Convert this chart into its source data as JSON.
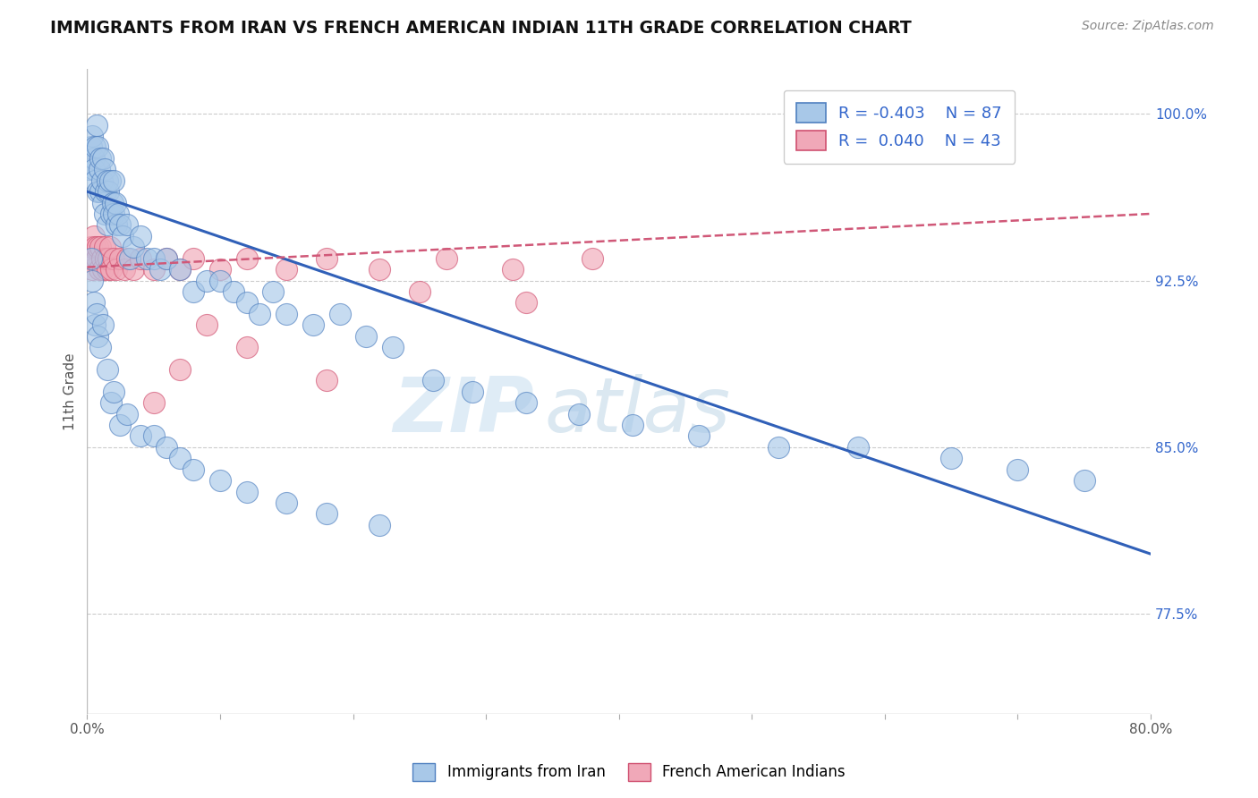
{
  "title": "IMMIGRANTS FROM IRAN VS FRENCH AMERICAN INDIAN 11TH GRADE CORRELATION CHART",
  "source_text": "Source: ZipAtlas.com",
  "ylabel": "11th Grade",
  "xlim": [
    0.0,
    80.0
  ],
  "ylim": [
    73.0,
    102.0
  ],
  "yticks": [
    77.5,
    85.0,
    92.5,
    100.0
  ],
  "ytick_labels": [
    "77.5%",
    "85.0%",
    "92.5%",
    "100.0%"
  ],
  "xticks": [
    0.0,
    10.0,
    20.0,
    30.0,
    40.0,
    50.0,
    60.0,
    70.0,
    80.0
  ],
  "blue_R": -0.403,
  "blue_N": 87,
  "pink_R": 0.04,
  "pink_N": 43,
  "blue_color": "#a8c8e8",
  "pink_color": "#f0a8b8",
  "blue_edge_color": "#5080c0",
  "pink_edge_color": "#d05070",
  "blue_line_color": "#3060b8",
  "pink_line_color": "#d05878",
  "legend_label_blue": "Immigrants from Iran",
  "legend_label_pink": "French American Indians",
  "watermark_zip": "ZIP",
  "watermark_atlas": "atlas",
  "background_color": "#ffffff",
  "grid_color": "#cccccc",
  "blue_trend_x0": 0.0,
  "blue_trend_y0": 96.5,
  "blue_trend_x1": 80.0,
  "blue_trend_y1": 80.2,
  "pink_trend_x0": 0.0,
  "pink_trend_y0": 93.1,
  "pink_trend_x1": 80.0,
  "pink_trend_y1": 95.5,
  "blue_x": [
    0.2,
    0.3,
    0.4,
    0.5,
    0.5,
    0.6,
    0.6,
    0.7,
    0.8,
    0.8,
    0.9,
    1.0,
    1.0,
    1.1,
    1.2,
    1.2,
    1.3,
    1.3,
    1.4,
    1.5,
    1.5,
    1.6,
    1.7,
    1.8,
    1.9,
    2.0,
    2.0,
    2.1,
    2.2,
    2.3,
    2.5,
    2.7,
    3.0,
    3.2,
    3.5,
    4.0,
    4.5,
    5.0,
    5.5,
    6.0,
    7.0,
    8.0,
    9.0,
    10.0,
    11.0,
    12.0,
    13.0,
    14.0,
    15.0,
    17.0,
    19.0,
    21.0,
    23.0,
    26.0,
    29.0,
    33.0,
    37.0,
    41.0,
    46.0,
    52.0,
    58.0,
    65.0,
    70.0,
    75.0,
    0.3,
    0.4,
    0.5,
    0.6,
    0.7,
    0.8,
    1.0,
    1.2,
    1.5,
    1.8,
    2.0,
    2.5,
    3.0,
    4.0,
    5.0,
    6.0,
    7.0,
    8.0,
    10.0,
    12.0,
    15.0,
    18.0,
    22.0
  ],
  "blue_y": [
    97.5,
    98.5,
    99.0,
    98.0,
    97.5,
    98.5,
    97.0,
    99.5,
    98.5,
    96.5,
    97.5,
    98.0,
    96.5,
    97.0,
    98.0,
    96.0,
    97.5,
    95.5,
    96.5,
    97.0,
    95.0,
    96.5,
    97.0,
    95.5,
    96.0,
    95.5,
    97.0,
    96.0,
    95.0,
    95.5,
    95.0,
    94.5,
    95.0,
    93.5,
    94.0,
    94.5,
    93.5,
    93.5,
    93.0,
    93.5,
    93.0,
    92.0,
    92.5,
    92.5,
    92.0,
    91.5,
    91.0,
    92.0,
    91.0,
    90.5,
    91.0,
    90.0,
    89.5,
    88.0,
    87.5,
    87.0,
    86.5,
    86.0,
    85.5,
    85.0,
    85.0,
    84.5,
    84.0,
    83.5,
    93.5,
    92.5,
    91.5,
    90.5,
    91.0,
    90.0,
    89.5,
    90.5,
    88.5,
    87.0,
    87.5,
    86.0,
    86.5,
    85.5,
    85.5,
    85.0,
    84.5,
    84.0,
    83.5,
    83.0,
    82.5,
    82.0,
    81.5
  ],
  "pink_x": [
    0.2,
    0.3,
    0.4,
    0.5,
    0.6,
    0.7,
    0.8,
    0.9,
    1.0,
    1.1,
    1.2,
    1.3,
    1.4,
    1.5,
    1.6,
    1.7,
    1.8,
    2.0,
    2.2,
    2.5,
    2.8,
    3.0,
    3.5,
    4.0,
    5.0,
    6.0,
    7.0,
    8.0,
    10.0,
    12.0,
    15.0,
    18.0,
    22.0,
    27.0,
    32.0,
    38.0,
    7.0,
    12.0,
    18.0,
    25.0,
    33.0,
    5.0,
    9.0
  ],
  "pink_y": [
    93.5,
    94.0,
    93.0,
    94.5,
    94.0,
    93.5,
    94.0,
    93.0,
    94.0,
    93.5,
    93.0,
    94.0,
    93.5,
    93.0,
    93.5,
    94.0,
    93.0,
    93.5,
    93.0,
    93.5,
    93.0,
    93.5,
    93.0,
    93.5,
    93.0,
    93.5,
    93.0,
    93.5,
    93.0,
    93.5,
    93.0,
    93.5,
    93.0,
    93.5,
    93.0,
    93.5,
    88.5,
    89.5,
    88.0,
    92.0,
    91.5,
    87.0,
    90.5
  ]
}
